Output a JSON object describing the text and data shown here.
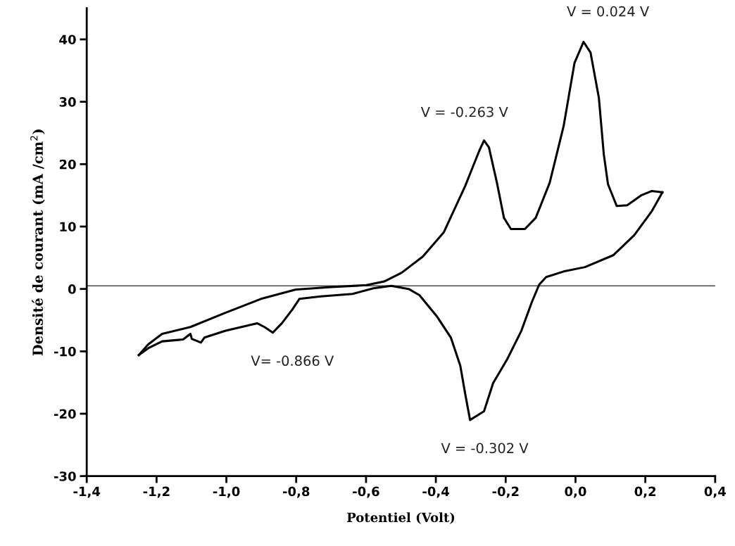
{
  "chart_data": {
    "type": "line",
    "xlabel": "Potentiel (Volt)",
    "ylabel": "Densité de courant (mA /cm$^{2}$)",
    "xlim": [
      -1.4,
      0.4
    ],
    "ylim": [
      -30,
      45
    ],
    "xticks": [
      {
        "value": -1.4,
        "label": "-1,4"
      },
      {
        "value": -1.2,
        "label": "-1,2"
      },
      {
        "value": -1.0,
        "label": "-1,0"
      },
      {
        "value": -0.8,
        "label": "-0,8"
      },
      {
        "value": -0.6,
        "label": "-0,6"
      },
      {
        "value": -0.4,
        "label": "-0,4"
      },
      {
        "value": -0.2,
        "label": "-0,2"
      },
      {
        "value": 0.0,
        "label": "0,0"
      },
      {
        "value": 0.2,
        "label": "0,2"
      },
      {
        "value": 0.4,
        "label": "0,4"
      }
    ],
    "yticks": [
      -30,
      -20,
      -10,
      0,
      10,
      20,
      30,
      40
    ],
    "grid": false,
    "marker": "none",
    "line_style": "solid",
    "ref_lines": [
      {
        "axis": "y",
        "value": 0.5,
        "color": "#444444"
      }
    ],
    "series": [
      {
        "color": "#000000",
        "x": [
          -1.251,
          -1.224,
          -1.184,
          -1.103,
          -1.002,
          -0.901,
          -0.801,
          -0.7,
          -0.599,
          -0.548,
          -0.498,
          -0.437,
          -0.377,
          -0.316,
          -0.276,
          -0.262,
          -0.248,
          -0.225,
          -0.205,
          -0.185,
          -0.145,
          -0.114,
          -0.074,
          -0.034,
          -0.003,
          0.023,
          0.043,
          0.067,
          0.081,
          0.093,
          0.118,
          0.148,
          0.188,
          0.219,
          0.249
        ],
        "values": [
          -10.6,
          -8.9,
          -7.2,
          -6.1,
          -3.8,
          -1.6,
          -0.1,
          0.3,
          0.6,
          1.2,
          2.6,
          5.2,
          9.1,
          16.5,
          22.1,
          23.8,
          22.7,
          17.0,
          11.4,
          9.6,
          9.6,
          11.4,
          17.0,
          26.1,
          36.2,
          39.6,
          37.9,
          30.6,
          21.6,
          16.8,
          13.3,
          13.4,
          15.0,
          15.7,
          15.5
        ]
      },
      {
        "color": "#000000",
        "x": [
          0.249,
          0.219,
          0.168,
          0.108,
          0.027,
          -0.034,
          -0.084,
          -0.104,
          -0.125,
          -0.155,
          -0.195,
          -0.236,
          -0.262,
          -0.302,
          -0.316,
          -0.33,
          -0.357,
          -0.397,
          -0.447,
          -0.478,
          -0.528,
          -0.579,
          -0.639,
          -0.73,
          -0.791,
          -0.811,
          -0.841,
          -0.867,
          -0.891,
          -0.912,
          -1.002,
          -1.063,
          -1.073,
          -1.099,
          -1.103,
          -1.124,
          -1.184,
          -1.224,
          -1.251
        ],
        "values": [
          15.5,
          12.5,
          8.6,
          5.4,
          3.5,
          2.8,
          1.9,
          0.7,
          -2.1,
          -6.7,
          -11.2,
          -15.1,
          -19.6,
          -21.0,
          -16.8,
          -12.3,
          -7.8,
          -4.4,
          -1.0,
          0.0,
          0.5,
          0.1,
          -0.8,
          -1.2,
          -1.6,
          -3.3,
          -5.5,
          -7.0,
          -6.1,
          -5.5,
          -6.7,
          -7.8,
          -8.6,
          -8.0,
          -7.2,
          -8.1,
          -8.4,
          -9.5,
          -10.6
        ]
      }
    ],
    "annotations": [
      {
        "text": "V = 0.024 V",
        "x": 0.023,
        "y": 39.6
      },
      {
        "text": "V = -0.263 V",
        "x": -0.262,
        "y": 23.8
      },
      {
        "text": "V= -0.866 V",
        "x": -0.867,
        "y": -7.0
      },
      {
        "text": "V = -0.302 V",
        "x": -0.302,
        "y": -21.0
      }
    ]
  }
}
